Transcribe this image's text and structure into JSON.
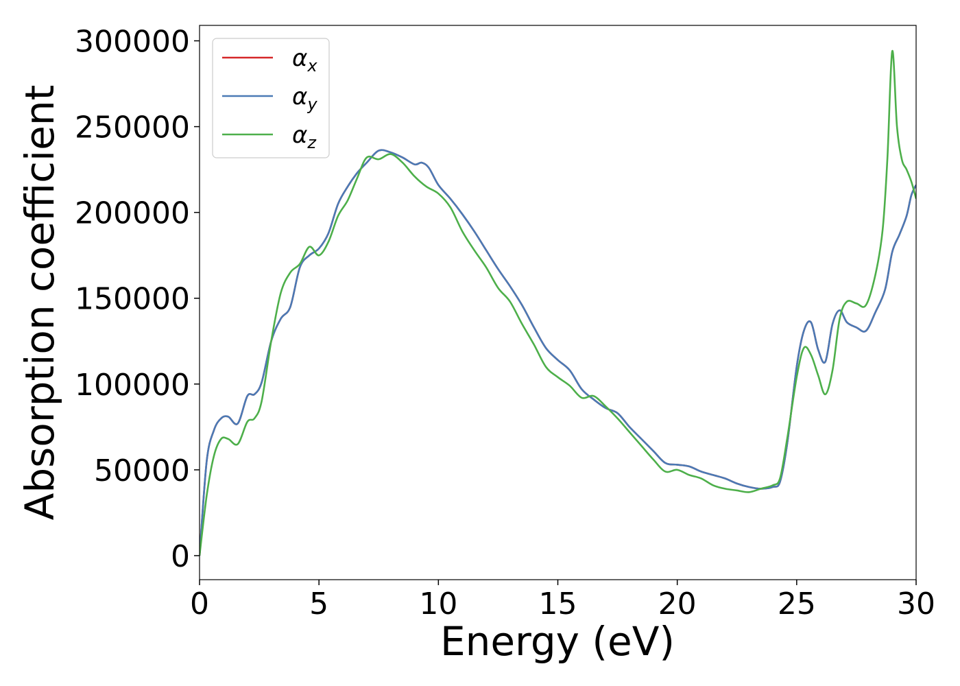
{
  "chart_data": {
    "type": "line",
    "title": "",
    "xlabel": "Energy (eV)",
    "ylabel": "Absorption coefficient",
    "xlim": [
      0,
      30
    ],
    "ylim": [
      -14000,
      309000
    ],
    "xticks": [
      0,
      5,
      10,
      15,
      20,
      25,
      30
    ],
    "yticks": [
      0,
      50000,
      100000,
      150000,
      200000,
      250000,
      300000
    ],
    "grid": false,
    "legend": "top-left",
    "series": [
      {
        "name": "αx",
        "legend_symbol": "α",
        "legend_sub": "x",
        "color": "#d62728",
        "x": [
          0,
          0.3,
          0.6,
          0.9,
          1.2,
          1.6,
          2.0,
          2.3,
          2.6,
          3.0,
          3.4,
          3.8,
          4.2,
          4.6,
          5.0,
          5.4,
          5.8,
          6.2,
          6.6,
          7.0,
          7.5,
          8.0,
          8.5,
          9.0,
          9.3,
          9.6,
          10.0,
          10.5,
          11.0,
          11.5,
          12.0,
          12.5,
          13.0,
          13.5,
          14.0,
          14.5,
          15.0,
          15.5,
          16.0,
          16.5,
          17.0,
          17.5,
          18.0,
          18.5,
          19.0,
          19.5,
          20.0,
          20.5,
          21.0,
          21.5,
          22.0,
          22.5,
          23.0,
          23.5,
          24.0,
          24.3,
          24.6,
          25.0,
          25.3,
          25.6,
          25.9,
          26.2,
          26.5,
          26.8,
          27.1,
          27.5,
          27.9,
          28.3,
          28.7,
          29.0,
          29.3,
          29.6,
          29.8,
          30.0
        ],
        "values": [
          0,
          55000,
          73000,
          80000,
          81000,
          77000,
          93000,
          94000,
          101000,
          125000,
          138000,
          145000,
          168000,
          175000,
          179000,
          188000,
          205000,
          215000,
          223000,
          229000,
          236000,
          235000,
          232000,
          228000,
          229000,
          226000,
          216000,
          208000,
          199000,
          189000,
          178000,
          167000,
          157000,
          146000,
          133000,
          121000,
          114000,
          108000,
          97000,
          91000,
          86000,
          83000,
          75000,
          68000,
          61000,
          54000,
          53000,
          52000,
          49000,
          47000,
          45000,
          42000,
          40000,
          39000,
          40000,
          43000,
          65000,
          110000,
          131000,
          136000,
          120000,
          113000,
          135000,
          143000,
          136000,
          133000,
          131000,
          142000,
          155000,
          177000,
          187000,
          198000,
          210000,
          216000
        ]
      },
      {
        "name": "αy",
        "legend_symbol": "α",
        "legend_sub": "y",
        "color": "#4a7ab5",
        "x": [
          0,
          0.3,
          0.6,
          0.9,
          1.2,
          1.6,
          2.0,
          2.3,
          2.6,
          3.0,
          3.4,
          3.8,
          4.2,
          4.6,
          5.0,
          5.4,
          5.8,
          6.2,
          6.6,
          7.0,
          7.5,
          8.0,
          8.5,
          9.0,
          9.3,
          9.6,
          10.0,
          10.5,
          11.0,
          11.5,
          12.0,
          12.5,
          13.0,
          13.5,
          14.0,
          14.5,
          15.0,
          15.5,
          16.0,
          16.5,
          17.0,
          17.5,
          18.0,
          18.5,
          19.0,
          19.5,
          20.0,
          20.5,
          21.0,
          21.5,
          22.0,
          22.5,
          23.0,
          23.5,
          24.0,
          24.3,
          24.6,
          25.0,
          25.3,
          25.6,
          25.9,
          26.2,
          26.5,
          26.8,
          27.1,
          27.5,
          27.9,
          28.3,
          28.7,
          29.0,
          29.3,
          29.6,
          29.8,
          30.0
        ],
        "values": [
          0,
          55000,
          73000,
          80000,
          81000,
          77000,
          93000,
          94000,
          101000,
          125000,
          138000,
          145000,
          168000,
          175000,
          179000,
          188000,
          205000,
          215000,
          223000,
          229000,
          236000,
          235000,
          232000,
          228000,
          229000,
          226000,
          216000,
          208000,
          199000,
          189000,
          178000,
          167000,
          157000,
          146000,
          133000,
          121000,
          114000,
          108000,
          97000,
          91000,
          86000,
          83000,
          75000,
          68000,
          61000,
          54000,
          53000,
          52000,
          49000,
          47000,
          45000,
          42000,
          40000,
          39000,
          40000,
          43000,
          65000,
          110000,
          131000,
          136000,
          120000,
          113000,
          135000,
          143000,
          136000,
          133000,
          131000,
          142000,
          155000,
          177000,
          187000,
          198000,
          210000,
          216000
        ]
      },
      {
        "name": "αz",
        "legend_symbol": "α",
        "legend_sub": "z",
        "color": "#4daf4a",
        "x": [
          0,
          0.3,
          0.6,
          0.9,
          1.2,
          1.6,
          2.0,
          2.3,
          2.6,
          3.0,
          3.4,
          3.8,
          4.2,
          4.6,
          5.0,
          5.4,
          5.8,
          6.2,
          6.6,
          7.0,
          7.5,
          8.0,
          8.5,
          9.0,
          9.5,
          10.0,
          10.5,
          11.0,
          11.5,
          12.0,
          12.5,
          13.0,
          13.5,
          14.0,
          14.5,
          15.0,
          15.5,
          16.0,
          16.5,
          17.0,
          17.5,
          18.0,
          18.5,
          19.0,
          19.5,
          20.0,
          20.5,
          21.0,
          21.5,
          22.0,
          22.5,
          23.0,
          23.5,
          24.0,
          24.3,
          24.6,
          25.0,
          25.3,
          25.6,
          25.9,
          26.2,
          26.5,
          26.8,
          27.1,
          27.5,
          27.9,
          28.3,
          28.6,
          28.8,
          29.0,
          29.2,
          29.4,
          29.6,
          29.8,
          30.0
        ],
        "values": [
          0,
          35000,
          58000,
          68000,
          68000,
          65000,
          78000,
          80000,
          90000,
          125000,
          153000,
          165000,
          170000,
          180000,
          175000,
          183000,
          198000,
          207000,
          220000,
          232000,
          231000,
          234000,
          229000,
          221000,
          215000,
          211000,
          203000,
          189000,
          178000,
          168000,
          156000,
          148000,
          135000,
          123000,
          110000,
          104000,
          99000,
          92000,
          93000,
          87000,
          80000,
          72000,
          64000,
          56000,
          49000,
          50000,
          47000,
          45000,
          41000,
          39000,
          38000,
          37000,
          39000,
          41000,
          45000,
          68000,
          104000,
          121000,
          117000,
          105000,
          94000,
          108000,
          138000,
          148000,
          147000,
          146000,
          164000,
          190000,
          232000,
          294000,
          250000,
          231000,
          225000,
          218000,
          208000
        ]
      }
    ]
  }
}
